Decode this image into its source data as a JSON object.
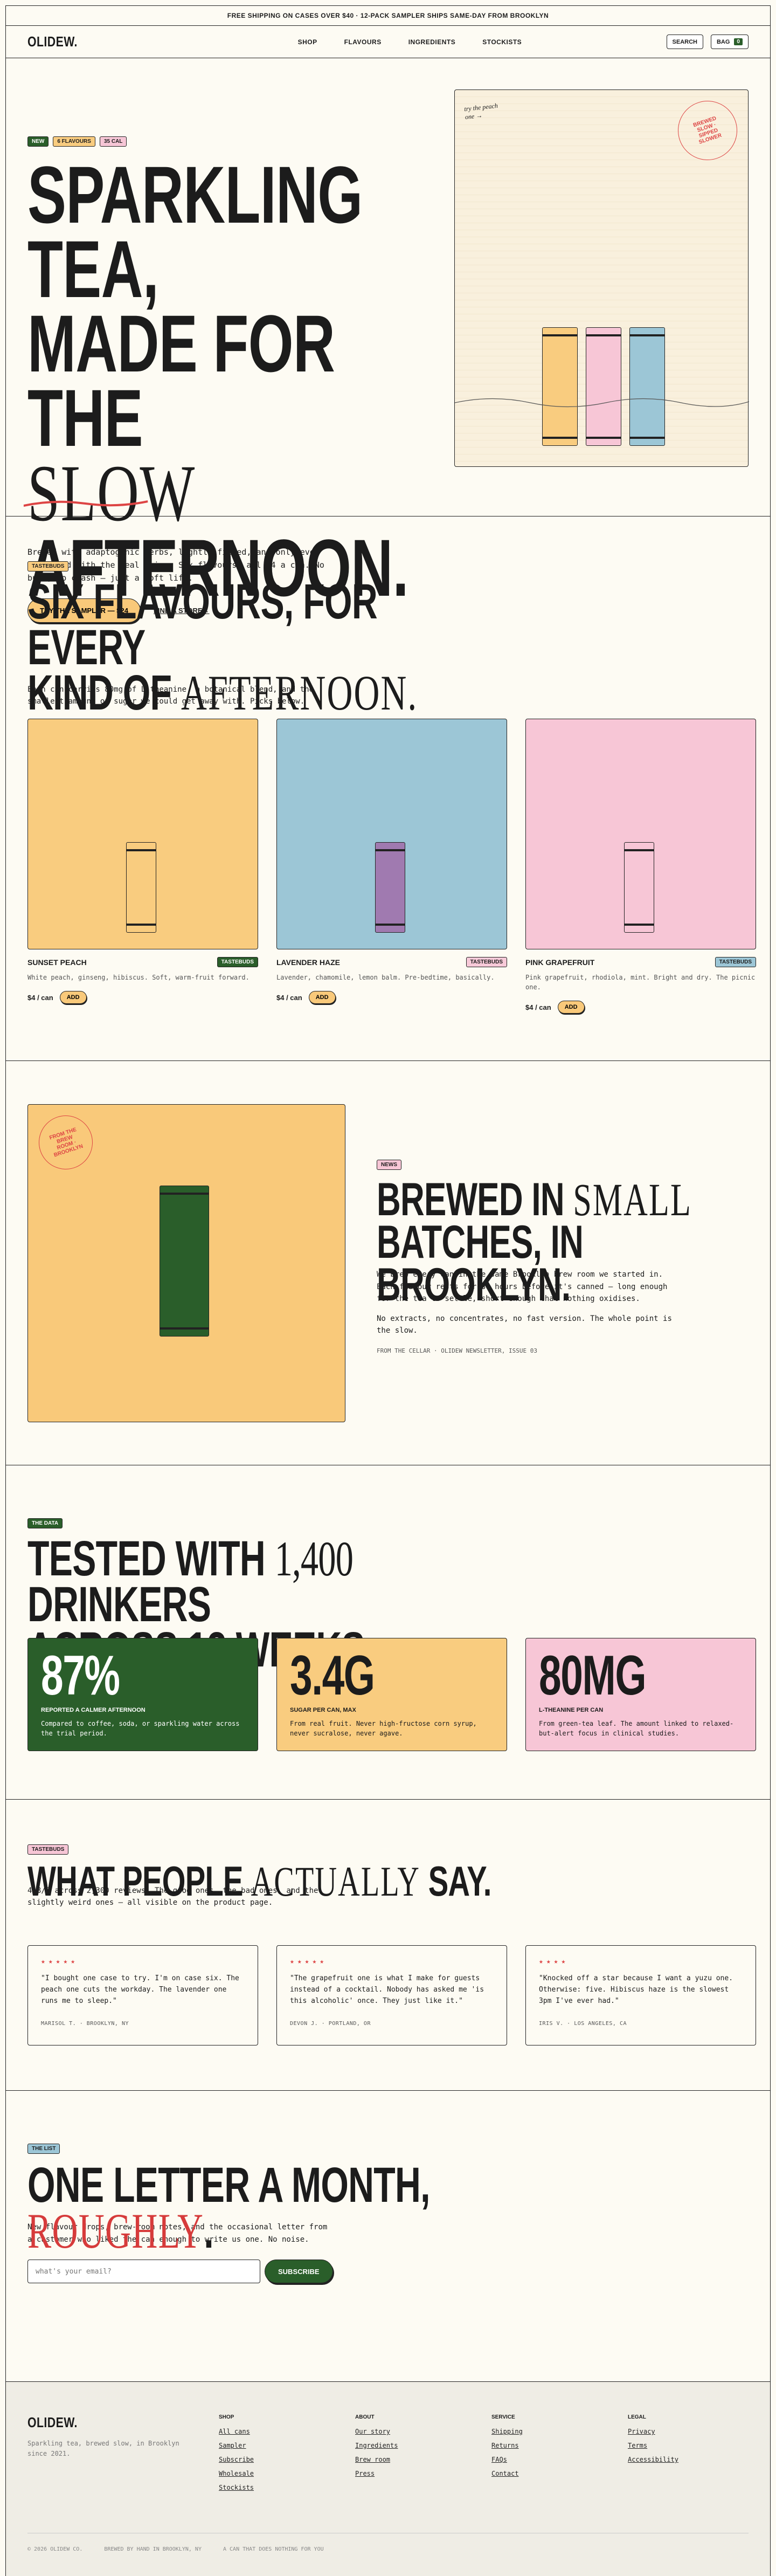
{
  "announcement": "FREE SHIPPING ON CASES OVER $40 · 12-PACK SAMPLER SHIPS SAME-DAY FROM BROOKLYN",
  "nav": {
    "logo": "OLIDEW.",
    "links": [
      "SHOP",
      "FLAVOURS",
      "INGREDIENTS",
      "STOCKISTS"
    ],
    "search": "SEARCH",
    "bag": "BAG",
    "bag_count": "0"
  },
  "hero": {
    "tags": [
      "NEW",
      "6 FLAVOURS",
      "35 CAL"
    ],
    "title_l1": "SPARKLING TEA,",
    "title_l2": "MADE FOR THE",
    "title_l3": "SLOW",
    "title_l4": "AFTERNOON.",
    "body": "Brewed with adaptogenic herbs, lightly fizzed, and only ever sweetened with the real thing. Six flavours, all $4 a can. No buzz, no crash — just a soft lift.",
    "cta_primary": "TRY THE SAMPLER — $24",
    "cta_secondary": "FIND A STORE→",
    "card_note": "try the peach one →",
    "stamp": "BREWED SLOW · SIPPED SLOWER"
  },
  "flavours": {
    "tag": "TASTEBUDS",
    "title_a": "SIX FLAVOURS, FOR EVERY",
    "title_b": "KIND OF",
    "title_c": "AFTERNOON.",
    "body": "Each can carries 80mg of L-theanine, a botanical blend, and the smallest amount of sugar we could get away with. Picks below.",
    "items": [
      {
        "name": "SUNSET PEACH",
        "badge": "TASTEBUDS",
        "desc": "White peach, ginseng, hibiscus. Soft, warm-fruit forward.",
        "price": "$4 / can",
        "add": "ADD",
        "bg": "#f9cc7f",
        "can": "#f9cc7f",
        "badge_bg": "#2a5e2a"
      },
      {
        "name": "LAVENDER HAZE",
        "badge": "TASTEBUDS",
        "desc": "Lavender, chamomile, lemon balm. Pre-bedtime, basically.",
        "price": "$4 / can",
        "add": "ADD",
        "bg": "#9cc6d6",
        "can": "#a07ab0",
        "badge_bg": "#f7c9d8"
      },
      {
        "name": "PINK GRAPEFRUIT",
        "badge": "TASTEBUDS",
        "desc": "Pink grapefruit, rhodiola, mint. Bright and dry. The picnic one.",
        "price": "$4 / can",
        "add": "ADD",
        "bg": "#f7c6d6",
        "can": "#f7c6d6",
        "badge_bg": "#9cc6d6"
      }
    ]
  },
  "story": {
    "tag": "NEWS",
    "title_a": "BREWED IN",
    "title_b": "SMALL",
    "title_c": "BATCHES, IN BROOKLYN.",
    "p1": "We brew every can in the same Brooklyn brew room we started in. Each flavour rests for 36 hours before it's canned — long enough for the tea to settle, short enough that nothing oxidises.",
    "p2": "No extracts, no concentrates, no fast version. The whole point is the slow.",
    "fine": "FROM THE CELLAR · OLIDEW NEWSLETTER, ISSUE 03",
    "stamp": "FROM THE BREW ROOM · BROOKLYN"
  },
  "data_section": {
    "tag": "THE DATA",
    "title_a": "TESTED WITH",
    "title_b": "1,400",
    "title_c": "DRINKERS",
    "title_d": "ACROSS 12 WEEKS.",
    "stats": [
      {
        "value": "87%",
        "label": "REPORTED A CALMER AFTERNOON",
        "desc": "Compared to coffee, soda, or sparkling water across the trial period.",
        "bg": "#2a5e2a",
        "fg": "#ffffff"
      },
      {
        "value": "3.4G",
        "label": "SUGAR PER CAN, MAX",
        "desc": "From real fruit. Never high-fructose corn syrup, never sucralose, never agave.",
        "bg": "#f9cc7f",
        "fg": "#1c1c1c"
      },
      {
        "value": "80MG",
        "label": "L-THEANINE PER CAN",
        "desc": "From green-tea leaf. The amount linked to relaxed-but-alert focus in clinical studies.",
        "bg": "#f7c6d6",
        "fg": "#1c1c1c"
      }
    ]
  },
  "reviews": {
    "tag": "TASTEBUDS",
    "title_a": "WHAT PEOPLE",
    "title_b": "ACTUALLY",
    "title_c": "SAY.",
    "body": "4.8/5 across 2,300 reviews. The good ones, the bad ones, and the slightly weird ones — all visible on the product page.",
    "items": [
      {
        "stars": "★★★★★",
        "quote": "\"I bought one case to try. I'm on case six. The peach one cuts the workday. The lavender one runs me to sleep.\"",
        "who": "MARISOL T. · BROOKLYN, NY"
      },
      {
        "stars": "★★★★★",
        "quote": "\"The grapefruit one is what I make for guests instead of a cocktail. Nobody has asked me 'is this alcoholic' once. They just like it.\"",
        "who": "DEVON J. · PORTLAND, OR"
      },
      {
        "stars": "★★★★",
        "quote": "\"Knocked off a star because I want a yuzu one. Otherwise: five. Hibiscus haze is the slowest 3pm I've ever had.\"",
        "who": "IRIS V. · LOS ANGELES, CA"
      }
    ]
  },
  "newsletter": {
    "tag": "THE LIST",
    "title_a": "ONE LETTER A MONTH,",
    "title_b": "ROUGHLY",
    "title_c": ".",
    "body": "New flavour drops, brew-room notes, and the occasional letter from a customer who liked the can enough to write us one. No noise.",
    "placeholder": "what's your email?",
    "button": "SUBSCRIBE"
  },
  "footer": {
    "logo": "OLIDEW.",
    "tagline": "Sparkling tea, brewed slow, in Brooklyn since 2021.",
    "cols": [
      {
        "title": "SHOP",
        "links": [
          "All cans",
          "Sampler",
          "Subscribe",
          "Wholesale",
          "Stockists"
        ]
      },
      {
        "title": "ABOUT",
        "links": [
          "Our story",
          "Ingredients",
          "Brew room",
          "Press"
        ]
      },
      {
        "title": "SERVICE",
        "links": [
          "Shipping",
          "Returns",
          "FAQs",
          "Contact"
        ]
      },
      {
        "title": "LEGAL",
        "links": [
          "Privacy",
          "Terms",
          "Accessibility"
        ]
      }
    ],
    "bottom": [
      "© 2026 OLIDEW CO.",
      "BREWED BY HAND IN BROOKLYN, NY",
      "A CAN THAT DOES NOTHING FOR YOU"
    ]
  }
}
